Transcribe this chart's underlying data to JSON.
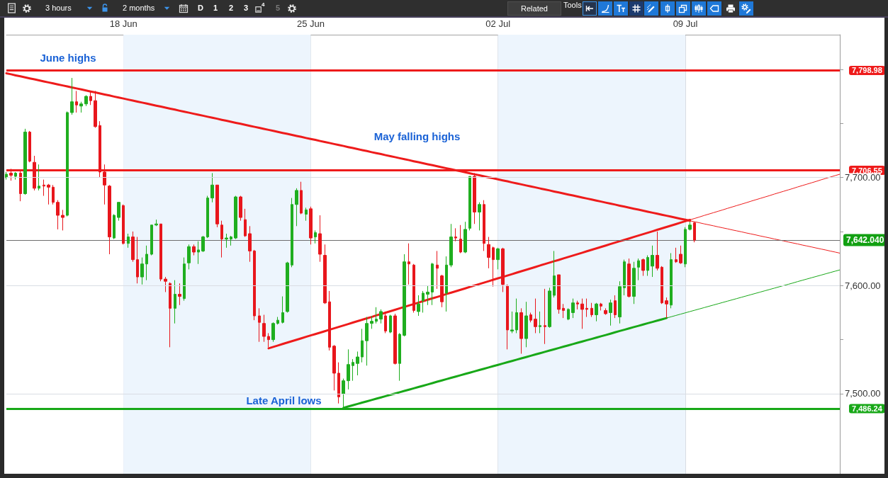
{
  "chart_data": {
    "type": "candlestick",
    "categories": [
      null,
      null,
      null,
      null,
      null,
      null,
      null,
      null,
      null,
      null,
      null,
      null,
      null,
      null,
      null,
      null,
      null,
      null,
      null,
      null,
      null,
      null,
      null,
      null,
      null,
      "18 Jun",
      null,
      null,
      null,
      null,
      null,
      null,
      null,
      null,
      null,
      null,
      null,
      null,
      null,
      null,
      null,
      null,
      null,
      null,
      null,
      null,
      null,
      null,
      null,
      null,
      null,
      null,
      null,
      null,
      null,
      null,
      null,
      null,
      null,
      null,
      null,
      null,
      null,
      null,
      null,
      "25 Jun",
      null,
      null,
      null,
      null,
      null,
      null,
      null,
      null,
      null,
      null,
      null,
      null,
      null,
      null,
      null,
      null,
      null,
      null,
      null,
      null,
      null,
      null,
      null,
      null,
      null,
      null,
      null,
      null,
      null,
      null,
      null,
      null,
      null,
      null,
      null,
      null,
      null,
      null,
      null,
      "02 Jul",
      null,
      null,
      null,
      null,
      null,
      null,
      null,
      null,
      null,
      null,
      null,
      null,
      null,
      null,
      null,
      null,
      null,
      null,
      null,
      null,
      null,
      null,
      null,
      null,
      null,
      null,
      null,
      null,
      null,
      null,
      null,
      null,
      null,
      null,
      null,
      null,
      null,
      null,
      null,
      "09 Jul",
      null,
      null,
      null,
      null,
      null,
      null,
      null,
      null,
      null,
      null,
      null,
      null,
      null,
      null,
      null,
      null,
      null,
      null,
      null,
      null,
      null,
      null,
      null,
      null,
      null,
      null,
      null,
      null,
      null,
      null,
      null,
      null,
      null
    ],
    "ohlc": [
      [
        7700,
        7705,
        7698,
        7703
      ],
      [
        7704,
        7708,
        7697,
        7702
      ],
      [
        7701,
        7705,
        7698,
        7704
      ],
      [
        7704,
        7706,
        7678,
        7685
      ],
      [
        7685,
        7745,
        7684,
        7742
      ],
      [
        7742,
        7743,
        7714,
        7715
      ],
      [
        7714,
        7720,
        7688,
        7690
      ],
      [
        7690,
        7712,
        7688,
        7692
      ],
      [
        7693,
        7698,
        7683,
        7692
      ],
      [
        7693,
        7694,
        7675,
        7691
      ],
      [
        7691,
        7693,
        7675,
        7677
      ],
      [
        7677,
        7679,
        7652,
        7665
      ],
      [
        7665,
        7670,
        7651,
        7663
      ],
      [
        7665,
        7761,
        7664,
        7760
      ],
      [
        7760,
        7792,
        7758,
        7770
      ],
      [
        7770,
        7780,
        7760,
        7767
      ],
      [
        7766,
        7770,
        7760,
        7768
      ],
      [
        7768,
        7776,
        7766,
        7775
      ],
      [
        7775,
        7780,
        7767,
        7771
      ],
      [
        7771,
        7780,
        7746,
        7747
      ],
      [
        7748,
        7752,
        7700,
        7705
      ],
      [
        7705,
        7712,
        7675,
        7693
      ],
      [
        7692,
        7693,
        7629,
        7645
      ],
      [
        7644,
        7666,
        7643,
        7665
      ],
      [
        7663,
        7677,
        7660,
        7677
      ],
      [
        7674,
        7675,
        7638,
        7639
      ],
      [
        7639,
        7648,
        7635,
        7645
      ],
      [
        7645,
        7650,
        7622,
        7624
      ],
      [
        7624,
        7645,
        7602,
        7608
      ],
      [
        7608,
        7626,
        7601,
        7620
      ],
      [
        7620,
        7637,
        7605,
        7629
      ],
      [
        7629,
        7656,
        7628,
        7656
      ],
      [
        7656,
        7661,
        7655,
        7657
      ],
      [
        7657,
        7657,
        7604,
        7606
      ],
      [
        7606,
        7608,
        7594,
        7604
      ],
      [
        7602,
        7603,
        7543,
        7579
      ],
      [
        7579,
        7605,
        7565,
        7592
      ],
      [
        7592,
        7602,
        7582,
        7590
      ],
      [
        7588,
        7626,
        7586,
        7620
      ],
      [
        7621,
        7638,
        7615,
        7636
      ],
      [
        7636,
        7638,
        7628,
        7631
      ],
      [
        7631,
        7641,
        7620,
        7633
      ],
      [
        7632,
        7646,
        7631,
        7645
      ],
      [
        7645,
        7683,
        7644,
        7681
      ],
      [
        7681,
        7704,
        7677,
        7693
      ],
      [
        7693,
        7693,
        7654,
        7657
      ],
      [
        7656,
        7660,
        7626,
        7643
      ],
      [
        7643,
        7648,
        7635,
        7644
      ],
      [
        7643,
        7646,
        7637,
        7645
      ],
      [
        7644,
        7683,
        7643,
        7682
      ],
      [
        7682,
        7683,
        7660,
        7663
      ],
      [
        7661,
        7671,
        7645,
        7646
      ],
      [
        7648,
        7655,
        7622,
        7632
      ],
      [
        7632,
        7633,
        7568,
        7572
      ],
      [
        7572,
        7579,
        7548,
        7566
      ],
      [
        7565,
        7573,
        7548,
        7553
      ],
      [
        7553,
        7556,
        7543,
        7550
      ],
      [
        7550,
        7566,
        7548,
        7565
      ],
      [
        7565,
        7571,
        7564,
        7568
      ],
      [
        7566,
        7590,
        7565,
        7575
      ],
      [
        7576,
        7622,
        7575,
        7621
      ],
      [
        7619,
        7681,
        7617,
        7675
      ],
      [
        7675,
        7690,
        7655,
        7688
      ],
      [
        7688,
        7696,
        7666,
        7667
      ],
      [
        7666,
        7672,
        7660,
        7670
      ],
      [
        7671,
        7673,
        7638,
        7644
      ],
      [
        7645,
        7651,
        7639,
        7649
      ],
      [
        7648,
        7665,
        7622,
        7629
      ],
      [
        7628,
        7638,
        7583,
        7584
      ],
      [
        7585,
        7595,
        7540,
        7543
      ],
      [
        7544,
        7545,
        7503,
        7519
      ],
      [
        7519,
        7529,
        7491,
        7497
      ],
      [
        7500,
        7514,
        7487,
        7512
      ],
      [
        7512,
        7541,
        7504,
        7527
      ],
      [
        7526,
        7532,
        7512,
        7529
      ],
      [
        7528,
        7539,
        7517,
        7534
      ],
      [
        7534,
        7560,
        7529,
        7549
      ],
      [
        7549,
        7571,
        7526,
        7565
      ],
      [
        7565,
        7572,
        7560,
        7567
      ],
      [
        7567,
        7580,
        7565,
        7569
      ],
      [
        7569,
        7578,
        7565,
        7576
      ],
      [
        7572,
        7576,
        7556,
        7558
      ],
      [
        7557,
        7573,
        7556,
        7572
      ],
      [
        7572,
        7574,
        7527,
        7528
      ],
      [
        7528,
        7556,
        7512,
        7555
      ],
      [
        7554,
        7629,
        7553,
        7622
      ],
      [
        7622,
        7639,
        7601,
        7620
      ],
      [
        7619,
        7620,
        7575,
        7577
      ],
      [
        7576,
        7591,
        7572,
        7583
      ],
      [
        7586,
        7595,
        7575,
        7593
      ],
      [
        7592,
        7600,
        7582,
        7594
      ],
      [
        7594,
        7621,
        7582,
        7620
      ],
      [
        7619,
        7632,
        7597,
        7616
      ],
      [
        7609,
        7610,
        7580,
        7585
      ],
      [
        7593,
        7627,
        7576,
        7619
      ],
      [
        7619,
        7657,
        7617,
        7645
      ],
      [
        7645,
        7653,
        7641,
        7644
      ],
      [
        7643,
        7656,
        7630,
        7631
      ],
      [
        7631,
        7659,
        7630,
        7652
      ],
      [
        7653,
        7701,
        7651,
        7701
      ],
      [
        7701,
        7704,
        7657,
        7668
      ],
      [
        7668,
        7677,
        7651,
        7675
      ],
      [
        7675,
        7679,
        7632,
        7639
      ],
      [
        7638,
        7645,
        7616,
        7626
      ],
      [
        7635,
        7636,
        7599,
        7624
      ],
      [
        7624,
        7635,
        7615,
        7634
      ],
      [
        7634,
        7635,
        7594,
        7601
      ],
      [
        7600,
        7601,
        7541,
        7559
      ],
      [
        7558,
        7576,
        7556,
        7559
      ],
      [
        7559,
        7588,
        7556,
        7575
      ],
      [
        7575,
        7579,
        7537,
        7551
      ],
      [
        7551,
        7585,
        7543,
        7572
      ],
      [
        7573,
        7575,
        7566,
        7568
      ],
      [
        7569,
        7588,
        7556,
        7562
      ],
      [
        7562,
        7576,
        7556,
        7563
      ],
      [
        7563,
        7597,
        7546,
        7562
      ],
      [
        7562,
        7598,
        7561,
        7595
      ],
      [
        7591,
        7632,
        7589,
        7609
      ],
      [
        7610,
        7610,
        7574,
        7578
      ],
      [
        7579,
        7583,
        7570,
        7577
      ],
      [
        7569,
        7579,
        7568,
        7578
      ],
      [
        7575,
        7588,
        7570,
        7584
      ],
      [
        7584,
        7586,
        7578,
        7583
      ],
      [
        7583,
        7588,
        7560,
        7578
      ],
      [
        7579,
        7588,
        7571,
        7578
      ],
      [
        7579,
        7584,
        7571,
        7573
      ],
      [
        7573,
        7584,
        7567,
        7583
      ],
      [
        7583,
        7584,
        7577,
        7581
      ],
      [
        7577,
        7579,
        7573,
        7574
      ],
      [
        7575,
        7587,
        7563,
        7584
      ],
      [
        7586,
        7591,
        7570,
        7573
      ],
      [
        7571,
        7604,
        7565,
        7599
      ],
      [
        7598,
        7624,
        7591,
        7622
      ],
      [
        7620,
        7625,
        7589,
        7590
      ],
      [
        7590,
        7622,
        7583,
        7616
      ],
      [
        7617,
        7625,
        7605,
        7623
      ],
      [
        7624,
        7625,
        7609,
        7614
      ],
      [
        7614,
        7628,
        7609,
        7626
      ],
      [
        7618,
        7637,
        7608,
        7628
      ],
      [
        7628,
        7650,
        7614,
        7616
      ],
      [
        7617,
        7618,
        7583,
        7584
      ],
      [
        7586,
        7589,
        7570,
        7583
      ],
      [
        7582,
        7630,
        7579,
        7624
      ],
      [
        7624,
        7635,
        7621,
        7622
      ],
      [
        7629,
        7637,
        7620,
        7621
      ],
      [
        7620,
        7654,
        7617,
        7652
      ],
      [
        7652,
        7659,
        7651,
        7656
      ],
      [
        7658,
        7659,
        7640,
        7642.04
      ],
      null,
      null,
      null,
      null,
      null,
      null,
      null,
      null,
      null,
      null,
      null,
      null,
      null,
      null,
      null,
      null,
      null,
      null,
      null,
      null,
      null,
      null,
      null,
      null,
      null,
      null,
      null,
      null,
      null,
      null,
      null
    ],
    "colors": [
      "#1fae1f",
      "#e8161c",
      "#1fae1f",
      "#e8161c",
      "#1fae1f",
      "#e8161c",
      "#e8161c",
      "#1fae1f",
      "#e8161c",
      "#e8161c",
      "#e8161c",
      "#e8161c",
      "#e8161c",
      "#1fae1f",
      "#1fae1f",
      "#e8161c",
      "#1fae1f",
      "#1fae1f",
      "#e8161c",
      "#e8161c",
      "#e8161c",
      "#e8161c",
      "#e8161c",
      "#1fae1f",
      "#1fae1f",
      "#e8161c",
      "#1fae1f",
      "#e8161c",
      "#e8161c",
      "#1fae1f",
      "#1fae1f",
      "#1fae1f",
      "#1fae1f",
      "#e8161c",
      "#e8161c",
      "#e8161c",
      "#1fae1f",
      "#e8161c",
      "#1fae1f",
      "#1fae1f",
      "#e8161c",
      "#1fae1f",
      "#1fae1f",
      "#1fae1f",
      "#1fae1f",
      "#e8161c",
      "#e8161c",
      "#1fae1f",
      "#1fae1f",
      "#1fae1f",
      "#e8161c",
      "#e8161c",
      "#e8161c",
      "#e8161c",
      "#e8161c",
      "#e8161c",
      "#e8161c",
      "#1fae1f",
      "#1fae1f",
      "#1fae1f",
      "#1fae1f",
      "#1fae1f",
      "#1fae1f",
      "#e8161c",
      "#1fae1f",
      "#e8161c",
      "#1fae1f",
      "#e8161c",
      "#e8161c",
      "#e8161c",
      "#e8161c",
      "#e8161c",
      "#1fae1f",
      "#1fae1f",
      "#1fae1f",
      "#1fae1f",
      "#1fae1f",
      "#1fae1f",
      "#1fae1f",
      "#1fae1f",
      "#1fae1f",
      "#e8161c",
      "#1fae1f",
      "#e8161c",
      "#1fae1f",
      "#1fae1f",
      "#e8161c",
      "#e8161c",
      "#1fae1f",
      "#1fae1f",
      "#1fae1f",
      "#1fae1f",
      "#e8161c",
      "#e8161c",
      "#1fae1f",
      "#1fae1f",
      "#e8161c",
      "#e8161c",
      "#1fae1f",
      "#1fae1f",
      "#e8161c",
      "#1fae1f",
      "#e8161c",
      "#e8161c",
      "#e8161c",
      "#1fae1f",
      "#e8161c",
      "#e8161c",
      "#1fae1f",
      "#1fae1f",
      "#e8161c",
      "#1fae1f",
      "#e8161c",
      "#e8161c",
      "#1fae1f",
      "#e8161c",
      "#1fae1f",
      "#1fae1f",
      "#e8161c",
      "#e8161c",
      "#1fae1f",
      "#1fae1f",
      "#e8161c",
      "#e8161c",
      "#e8161c",
      "#e8161c",
      "#1fae1f",
      "#e8161c",
      "#e8161c",
      "#1fae1f",
      "#e8161c",
      "#1fae1f",
      "#1fae1f",
      "#e8161c",
      "#1fae1f",
      "#1fae1f",
      "#e8161c",
      "#1fae1f",
      "#1fae1f",
      "#e8161c",
      "#e8161c",
      "#e8161c",
      "#1fae1f",
      "#e8161c",
      "#e8161c",
      "#1fae1f",
      "#1fae1f",
      "#e8161c",
      null,
      null,
      null,
      null,
      null,
      null,
      null,
      null,
      null,
      null,
      null,
      null,
      null,
      null,
      null,
      null,
      null,
      null,
      null,
      null,
      null,
      null,
      null,
      null,
      null,
      null,
      null,
      null,
      null,
      null,
      null
    ],
    "series": [
      {
        "type": "line",
        "color": "#ee1b1b",
        "values": [
          7796.3,
          7795.4,
          7794.4,
          7793.5,
          7792.6,
          7791.6,
          7790.7,
          7789.8,
          7788.8,
          7787.9,
          7787.0,
          7786.0,
          7785.1,
          7784.2,
          7783.2,
          7782.3,
          7781.4,
          7780.4,
          7779.5,
          7778.6,
          7777.6,
          7776.7,
          7775.8,
          7774.8,
          7773.9,
          7773.0,
          7772.0,
          7771.1,
          7770.1,
          7769.2,
          7768.3,
          7767.3,
          7766.4,
          7765.5,
          7764.5,
          7763.6,
          7762.7,
          7761.7,
          7760.8,
          7759.9,
          7758.9,
          7758.0,
          7757.1,
          7756.1,
          7755.2,
          7754.3,
          7753.3,
          7752.4,
          7751.5,
          7750.5,
          7749.6,
          7748.7,
          7747.7,
          7746.8,
          7745.9,
          7744.9,
          7744.0,
          7743.1,
          7742.1,
          7741.2,
          7740.3,
          7739.3,
          7738.4,
          7737.5,
          7736.5,
          7735.6,
          7734.7,
          7733.7,
          7732.8,
          7731.9,
          7730.9,
          7730.0,
          7729.1,
          7728.1,
          7727.2,
          7726.3,
          7725.3,
          7724.4,
          7723.4,
          7722.5,
          7721.6,
          7720.6,
          7719.7,
          7718.8,
          7717.8,
          7716.9,
          7716.0,
          7715.0,
          7714.1,
          7713.2,
          7712.2,
          7711.3,
          7710.4,
          7709.4,
          7708.5,
          7707.6,
          7706.6,
          7705.7,
          7704.8,
          7703.8,
          7702.9,
          7702.0,
          7701.0,
          7700.1,
          7699.2,
          7698.2,
          7697.3,
          7696.4,
          7695.4,
          7694.5,
          7693.6,
          7692.6,
          7691.7,
          7690.8,
          7689.8,
          7688.9,
          7688.0,
          7687.0,
          7686.1,
          7685.2,
          7684.2,
          7683.3,
          7682.4,
          7681.4,
          7680.5,
          7679.6,
          7678.6,
          7677.7,
          7676.7,
          7675.8,
          7674.9,
          7673.9,
          7673.0,
          7672.1,
          7671.1,
          7670.2,
          7669.3,
          7668.3,
          7667.4,
          7666.5,
          7665.5,
          7664.6,
          7663.7,
          7662.7,
          7661.8,
          7660.9,
          7659.9,
          null,
          null,
          null,
          null,
          null,
          null,
          null,
          null,
          null,
          null,
          null,
          null,
          null,
          null,
          null,
          null,
          null,
          null,
          null,
          null,
          null,
          null,
          null,
          null,
          null,
          null,
          null,
          null,
          null,
          null,
          null,
          null
        ]
      },
      {
        "type": "line",
        "color": "#ee1b1b",
        "values": [
          null,
          null,
          null,
          null,
          null,
          null,
          null,
          null,
          null,
          null,
          null,
          null,
          null,
          null,
          null,
          null,
          null,
          null,
          null,
          null,
          null,
          null,
          null,
          null,
          null,
          null,
          null,
          null,
          null,
          null,
          null,
          null,
          null,
          null,
          null,
          null,
          null,
          null,
          null,
          null,
          null,
          null,
          null,
          null,
          null,
          null,
          null,
          null,
          null,
          null,
          null,
          null,
          null,
          null,
          null,
          null,
          null,
          null,
          null,
          null,
          null,
          null,
          null,
          null,
          null,
          null,
          null,
          null,
          null,
          null,
          null,
          null,
          null,
          null,
          null,
          null,
          null,
          null,
          null,
          null,
          null,
          null,
          null,
          null,
          null,
          null,
          null,
          null,
          null,
          null,
          null,
          null,
          null,
          null,
          null,
          null,
          null,
          null,
          null,
          null,
          null,
          null,
          null,
          null,
          null,
          null,
          null,
          null,
          null,
          null,
          null,
          null,
          null,
          null,
          null,
          null,
          null,
          null,
          null,
          null,
          null,
          null,
          null,
          null,
          null,
          null,
          null,
          null,
          null,
          null,
          null,
          null,
          null,
          null,
          null,
          null,
          null,
          null,
          null,
          null,
          null,
          null,
          null,
          null,
          null,
          null,
          7659.9,
          7659.0,
          7658.1,
          7657.1,
          7656.2,
          7655.3,
          7654.3,
          7653.4,
          7652.5,
          7651.5,
          7650.6,
          7649.7,
          7648.7,
          7647.8,
          7646.9,
          7645.9,
          7645.0,
          7644.1,
          7643.1,
          7642.2,
          7641.3,
          7640.3,
          7639.4,
          7638.5,
          7637.5,
          7636.6,
          7635.7,
          7634.7,
          7633.8,
          7632.9,
          7631.9,
          7631.0,
          7630.0
        ]
      },
      {
        "type": "line",
        "color": "#ee1b1b",
        "values": [
          null,
          null,
          null,
          null,
          null,
          null,
          null,
          null,
          null,
          null,
          null,
          null,
          null,
          null,
          null,
          null,
          null,
          null,
          null,
          null,
          null,
          null,
          null,
          null,
          null,
          null,
          null,
          null,
          null,
          null,
          null,
          null,
          null,
          null,
          null,
          null,
          null,
          null,
          null,
          null,
          null,
          null,
          null,
          null,
          null,
          null,
          null,
          null,
          null,
          null,
          null,
          null,
          null,
          null,
          null,
          null,
          7542.0,
          7543.3,
          7544.6,
          7546.0,
          7547.3,
          7548.6,
          7549.9,
          7551.2,
          7552.6,
          7553.9,
          7555.2,
          7556.5,
          7557.8,
          7559.2,
          7560.5,
          7561.8,
          7563.1,
          7564.4,
          7565.8,
          7567.1,
          7568.4,
          7569.7,
          7571.0,
          7572.4,
          7573.7,
          7575.0,
          7576.3,
          7577.6,
          7579.0,
          7580.3,
          7581.6,
          7582.9,
          7584.2,
          7585.6,
          7586.9,
          7588.2,
          7589.5,
          7590.8,
          7592.2,
          7593.5,
          7594.8,
          7596.1,
          7597.4,
          7598.8,
          7600.1,
          7601.4,
          7602.7,
          7604.0,
          7605.4,
          7606.7,
          7608.0,
          7609.3,
          7610.6,
          7612.0,
          7613.3,
          7614.6,
          7615.9,
          7617.2,
          7618.6,
          7619.9,
          7621.2,
          7622.5,
          7623.8,
          7625.2,
          7626.5,
          7627.8,
          7629.1,
          7630.4,
          7631.8,
          7633.1,
          7634.4,
          7635.7,
          7637.0,
          7638.4,
          7639.7,
          7641.0,
          7642.3,
          7643.6,
          7645.0,
          7646.3,
          7647.6,
          7648.9,
          7650.2,
          7651.6,
          7652.9,
          7654.2,
          7655.5,
          7656.8,
          7658.2,
          7659.5,
          7660.8,
          null,
          null,
          null,
          null,
          null,
          null,
          null,
          null,
          null,
          null,
          null,
          null,
          null,
          null,
          null,
          null,
          null,
          null,
          null,
          null,
          null,
          null,
          null,
          null,
          null,
          null,
          null,
          null,
          null,
          null,
          null,
          null
        ]
      },
      {
        "type": "line",
        "color": "#ee1b1b",
        "values": [
          null,
          null,
          null,
          null,
          null,
          null,
          null,
          null,
          null,
          null,
          null,
          null,
          null,
          null,
          null,
          null,
          null,
          null,
          null,
          null,
          null,
          null,
          null,
          null,
          null,
          null,
          null,
          null,
          null,
          null,
          null,
          null,
          null,
          null,
          null,
          null,
          null,
          null,
          null,
          null,
          null,
          null,
          null,
          null,
          null,
          null,
          null,
          null,
          null,
          null,
          null,
          null,
          null,
          null,
          null,
          null,
          null,
          null,
          null,
          null,
          null,
          null,
          null,
          null,
          null,
          null,
          null,
          null,
          null,
          null,
          null,
          null,
          null,
          null,
          null,
          null,
          null,
          null,
          null,
          null,
          null,
          null,
          null,
          null,
          null,
          null,
          null,
          null,
          null,
          null,
          null,
          null,
          null,
          null,
          null,
          null,
          null,
          null,
          null,
          null,
          null,
          null,
          null,
          null,
          null,
          null,
          null,
          null,
          null,
          null,
          null,
          null,
          null,
          null,
          null,
          null,
          null,
          null,
          null,
          null,
          null,
          null,
          null,
          null,
          null,
          null,
          null,
          null,
          null,
          null,
          null,
          null,
          null,
          null,
          null,
          null,
          null,
          null,
          null,
          null,
          null,
          null,
          null,
          null,
          null,
          null,
          7660.8,
          7662.1,
          7663.4,
          7664.8,
          7666.1,
          7667.4,
          7668.7,
          7670.0,
          7671.4,
          7672.7,
          7674.0,
          7675.3,
          7676.6,
          7678.0,
          7679.3,
          7680.6,
          7681.9,
          7683.2,
          7684.6,
          7685.9,
          7687.2,
          7688.5,
          7689.8,
          7691.2,
          7692.5,
          7693.8,
          7695.1,
          7696.4,
          7697.8,
          7699.1,
          7700.4,
          7701.7,
          7703.0
        ]
      },
      {
        "type": "line",
        "color": "#18a818",
        "values": [
          null,
          null,
          null,
          null,
          null,
          null,
          null,
          null,
          null,
          null,
          null,
          null,
          null,
          null,
          null,
          null,
          null,
          null,
          null,
          null,
          null,
          null,
          null,
          null,
          null,
          null,
          null,
          null,
          null,
          null,
          null,
          null,
          null,
          null,
          null,
          null,
          null,
          null,
          null,
          null,
          null,
          null,
          null,
          null,
          null,
          null,
          null,
          null,
          null,
          null,
          null,
          null,
          null,
          null,
          null,
          null,
          null,
          null,
          null,
          null,
          null,
          null,
          null,
          null,
          null,
          null,
          null,
          null,
          null,
          null,
          null,
          null,
          7487.0,
          7488.2,
          7489.4,
          7490.6,
          7491.8,
          7493.0,
          7494.2,
          7495.4,
          7496.6,
          7497.8,
          7499.0,
          7500.2,
          7501.4,
          7502.6,
          7503.8,
          7505.0,
          7506.2,
          7507.4,
          7508.6,
          7509.8,
          7511.1,
          7512.3,
          7513.5,
          7514.7,
          7515.9,
          7517.1,
          7518.3,
          7519.5,
          7520.7,
          7521.9,
          7523.1,
          7524.3,
          7525.5,
          7526.7,
          7527.9,
          7529.1,
          7530.3,
          7531.5,
          7532.7,
          7533.9,
          7535.1,
          7536.3,
          7537.5,
          7538.7,
          7539.9,
          7541.1,
          7542.3,
          7543.5,
          7544.7,
          7545.9,
          7547.1,
          7548.3,
          7549.5,
          7550.7,
          7551.9,
          7553.1,
          7554.3,
          7555.5,
          7556.8,
          7558.0,
          7559.2,
          7560.4,
          7561.6,
          7562.8,
          7564.0,
          7565.2,
          7566.4,
          7567.6,
          7568.8,
          7570.0,
          null,
          null,
          null,
          null,
          null,
          null,
          null,
          null,
          null,
          null,
          null,
          null,
          null,
          null,
          null,
          null,
          null,
          null,
          null,
          null,
          null,
          null,
          null,
          null,
          null,
          null,
          null,
          null,
          null,
          null,
          null,
          null,
          null,
          null,
          null,
          null,
          null
        ]
      },
      {
        "type": "line",
        "color": "#18a818",
        "values": [
          null,
          null,
          null,
          null,
          null,
          null,
          null,
          null,
          null,
          null,
          null,
          null,
          null,
          null,
          null,
          null,
          null,
          null,
          null,
          null,
          null,
          null,
          null,
          null,
          null,
          null,
          null,
          null,
          null,
          null,
          null,
          null,
          null,
          null,
          null,
          null,
          null,
          null,
          null,
          null,
          null,
          null,
          null,
          null,
          null,
          null,
          null,
          null,
          null,
          null,
          null,
          null,
          null,
          null,
          null,
          null,
          null,
          null,
          null,
          null,
          null,
          null,
          null,
          null,
          null,
          null,
          null,
          null,
          null,
          null,
          null,
          null,
          null,
          null,
          null,
          null,
          null,
          null,
          null,
          null,
          null,
          null,
          null,
          null,
          null,
          null,
          null,
          null,
          null,
          null,
          null,
          null,
          null,
          null,
          null,
          null,
          null,
          null,
          null,
          null,
          null,
          null,
          null,
          null,
          null,
          null,
          null,
          null,
          null,
          null,
          null,
          null,
          null,
          null,
          null,
          null,
          null,
          null,
          null,
          null,
          null,
          null,
          null,
          null,
          null,
          null,
          null,
          null,
          null,
          null,
          null,
          null,
          null,
          null,
          null,
          null,
          null,
          null,
          null,
          null,
          null,
          7570.0,
          7571.2,
          7572.4,
          7573.6,
          7574.8,
          7576.0,
          7577.2,
          7578.4,
          7579.6,
          7580.8,
          7582.0,
          7583.2,
          7584.4,
          7585.6,
          7586.8,
          7588.0,
          7589.2,
          7590.4,
          7591.6,
          7592.8,
          7594.0,
          7595.2,
          7596.4,
          7597.6,
          7598.8,
          7600.0,
          7601.2,
          7602.4,
          7603.7,
          7604.9,
          7606.1,
          7607.3,
          7608.5,
          7609.7,
          7610.9,
          7612.1,
          7613.3,
          7614.5
        ]
      }
    ],
    "ylim": [
      7426,
      7832
    ],
    "yticks": [
      {
        "value": 7500,
        "label": "7,500.00"
      },
      {
        "value": 7550,
        "label": null
      },
      {
        "value": 7600,
        "label": "7,600.00"
      },
      {
        "value": 7650,
        "label": null
      },
      {
        "value": 7700,
        "label": "7,700.00"
      },
      {
        "value": 7750,
        "label": null
      },
      {
        "value": 7800,
        "label": null
      }
    ],
    "grid": true,
    "ref_lines": [
      {
        "axis": "y",
        "value": 7798.98,
        "label": "7,798.98",
        "color": "#ee1b1b"
      },
      {
        "axis": "y",
        "value": 7706.55,
        "label": "7,706.55",
        "color": "#ee1b1b"
      },
      {
        "axis": "y",
        "value": 7642.04,
        "label": "7,642.040",
        "color": "#6e6e6e"
      },
      {
        "axis": "y",
        "value": 7486.24,
        "label": "7,486.24",
        "color": "#18a818"
      }
    ],
    "bands": [
      {
        "axis": "x",
        "from": "18 Jun",
        "to": "25 Jun",
        "color": "#edf5fd"
      },
      {
        "axis": "x",
        "from": "02 Jul",
        "to": "09 Jul",
        "color": "#edf5fd"
      }
    ],
    "annotations": [
      "June highs",
      "May falling highs",
      "Late April lows",
      "3 hours",
      "2 months",
      "D",
      "1",
      "2",
      "3",
      "4",
      "5",
      "Related",
      "Tools"
    ]
  }
}
